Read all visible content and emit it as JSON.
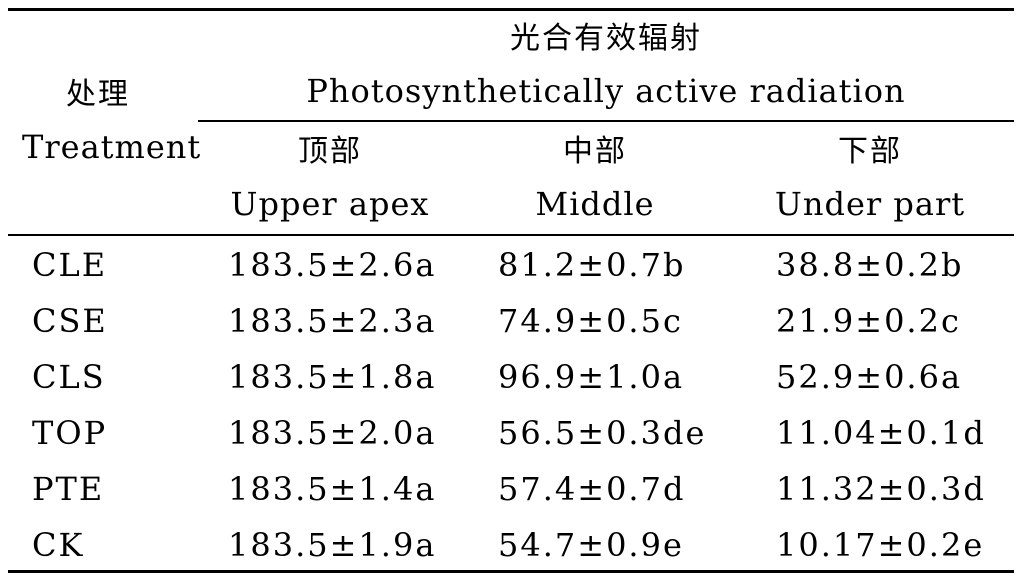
{
  "header": {
    "treatment_cn": "处理",
    "treatment_en": "Treatment",
    "par_cn": "光合有效辐射",
    "par_en": "Photosynthetically active radiation",
    "columns": [
      {
        "cn": "顶部",
        "en": "Upper apex"
      },
      {
        "cn": "中部",
        "en": "Middle"
      },
      {
        "cn": "下部",
        "en": "Under part"
      }
    ]
  },
  "rows": [
    {
      "treatment": "CLE",
      "upper": "183.5±2.6a",
      "middle": "81.2±0.7b",
      "under": "38.8±0.2b"
    },
    {
      "treatment": "CSE",
      "upper": "183.5±2.3a",
      "middle": "74.9±0.5c",
      "under": "21.9±0.2c"
    },
    {
      "treatment": "CLS",
      "upper": "183.5±1.8a",
      "middle": "96.9±1.0a",
      "under": "52.9±0.6a"
    },
    {
      "treatment": "TOP",
      "upper": "183.5±2.0a",
      "middle": "56.5±0.3de",
      "under": "11.04±0.1d"
    },
    {
      "treatment": "PTE",
      "upper": "183.5±1.4a",
      "middle": "57.4±0.7d",
      "under": "11.32±0.3d"
    },
    {
      "treatment": "CK",
      "upper": "183.5±1.9a",
      "middle": "54.7±0.9e",
      "under": "10.17±0.2e"
    }
  ]
}
